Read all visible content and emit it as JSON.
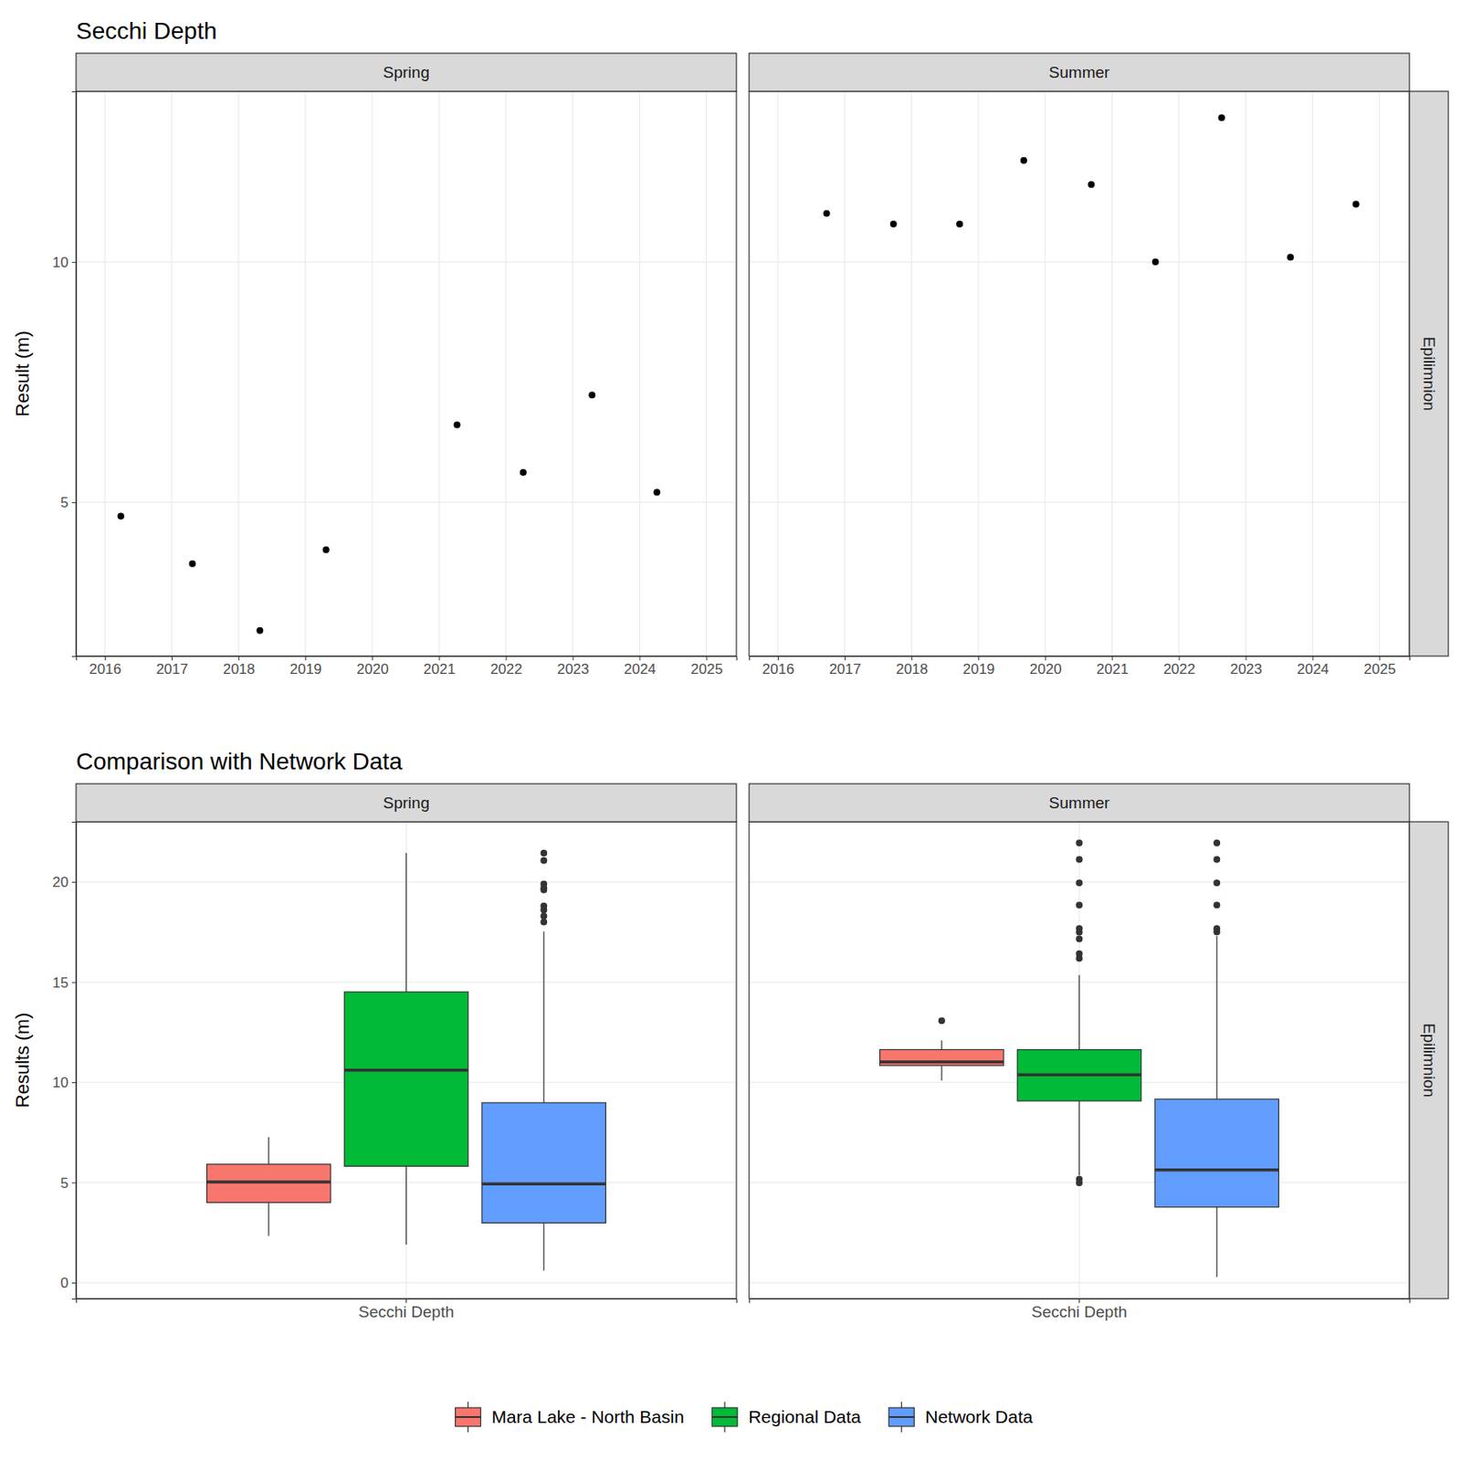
{
  "chart_data": [
    {
      "type": "scatter",
      "title": "Secchi Depth",
      "y_label": "Result (m)",
      "facet_row": "Epilimnion",
      "color": "#000000",
      "grid": true,
      "xlim": [
        2015.57,
        2025.45
      ],
      "xticks": [
        2016,
        2017,
        2018,
        2019,
        2020,
        2021,
        2022,
        2023,
        2024,
        2025
      ],
      "ylim": [
        1.8,
        13.55
      ],
      "yticks": [
        5,
        10
      ],
      "series": [
        {
          "name": "Spring",
          "x": [
            2016.24,
            2017.31,
            2018.32,
            2019.31,
            2021.27,
            2022.26,
            2023.29,
            2024.26
          ],
          "values": [
            4.71,
            3.72,
            2.33,
            4.01,
            6.61,
            5.62,
            7.23,
            5.21
          ]
        },
        {
          "name": "Summer",
          "x": [
            2016.73,
            2017.73,
            2018.72,
            2019.68,
            2020.69,
            2021.65,
            2022.64,
            2023.67,
            2024.65
          ],
          "values": [
            11.01,
            10.79,
            10.79,
            12.11,
            11.61,
            10.0,
            13.0,
            10.1,
            11.2
          ]
        }
      ]
    },
    {
      "type": "box",
      "title": "Comparison with Network Data",
      "y_label": "Results (m)",
      "facet_row": "Epilimnion",
      "categories": [
        "Secchi Depth"
      ],
      "panels": [
        "Spring",
        "Summer"
      ],
      "grid": true,
      "legend": "bottom",
      "ylim": [
        -0.8,
        23
      ],
      "yticks": [
        0,
        5,
        10,
        15,
        20
      ],
      "series": [
        {
          "name": "Mara Lake - North Basin",
          "color": "#F8766D",
          "boxes": [
            {
              "low": 2.33,
              "q1": 4.0,
              "median": 5.02,
              "q3": 5.91,
              "high": 7.26,
              "outliers": []
            },
            {
              "low": 10.09,
              "q1": 10.84,
              "median": 11.02,
              "q3": 11.63,
              "high": 12.09,
              "outliers": [
                13.07
              ]
            }
          ]
        },
        {
          "name": "Regional Data",
          "color": "#00BA38",
          "boxes": [
            {
              "low": 1.9,
              "q1": 5.81,
              "median": 10.6,
              "q3": 14.51,
              "high": 21.44,
              "outliers": []
            },
            {
              "low": 5.35,
              "q1": 9.07,
              "median": 10.37,
              "q3": 11.63,
              "high": 15.35,
              "outliers": [
                21.95,
                21.12,
                19.95,
                18.84,
                17.67,
                17.49,
                17.16,
                16.42,
                16.19,
                5.16,
                4.98
              ]
            }
          ]
        },
        {
          "name": "Network Data",
          "color": "#619CFF",
          "boxes": [
            {
              "low": 0.6,
              "q1": 2.98,
              "median": 4.93,
              "q3": 8.98,
              "high": 17.53,
              "outliers": [
                21.44,
                21.07,
                19.9,
                19.7,
                19.6,
                18.8,
                18.6,
                18.3,
                18.0
              ]
            },
            {
              "low": 0.28,
              "q1": 3.77,
              "median": 5.63,
              "q3": 9.16,
              "high": 17.3,
              "outliers": [
                21.95,
                21.12,
                19.95,
                18.84,
                17.67,
                17.5
              ]
            }
          ]
        }
      ]
    }
  ]
}
